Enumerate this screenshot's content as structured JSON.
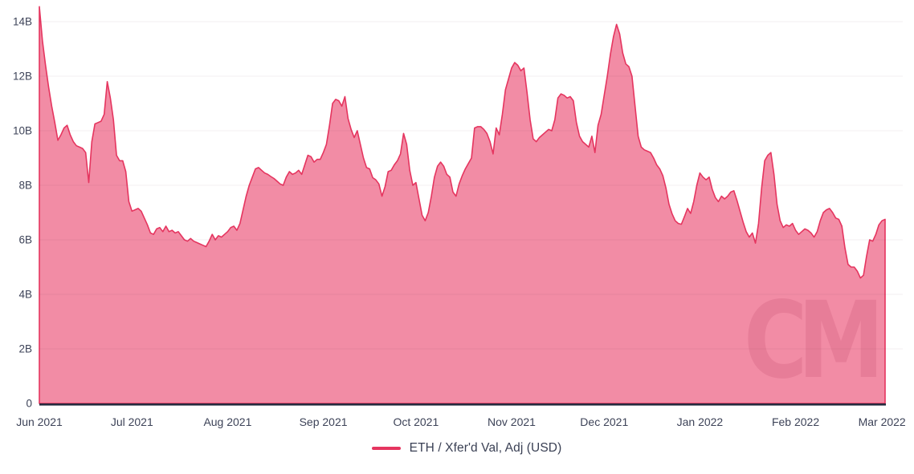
{
  "legend": {
    "label": "ETH / Xfer'd Val, Adj (USD)",
    "swatch_color": "#e5355f"
  },
  "watermark_text": "CM",
  "colors": {
    "background": "#ffffff",
    "line": "#e5355f",
    "fill": "#f28ca5",
    "axis_line": "#262a3e",
    "tick_label": "#3d4358",
    "legend_label": "#3a4054",
    "gridline": "rgba(86,30,58,0.07)",
    "watermark": "rgba(164,31,73,0.13)"
  },
  "chart_data": {
    "type": "area",
    "title": "",
    "xlabel": "",
    "ylabel": "",
    "grid": "horizontal",
    "legend_position": "bottom-center",
    "ylim": [
      0,
      14.8
    ],
    "y_ticks": [
      "0",
      "2B",
      "4B",
      "6B",
      "8B",
      "10B",
      "12B",
      "14B"
    ],
    "y_tick_values": [
      0,
      2,
      4,
      6,
      8,
      10,
      12,
      14
    ],
    "x_ticks": [
      {
        "label": "Jun 2021",
        "day": 0
      },
      {
        "label": "Jul 2021",
        "day": 30
      },
      {
        "label": "Aug 2021",
        "day": 61
      },
      {
        "label": "Sep 2021",
        "day": 92
      },
      {
        "label": "Oct 2021",
        "day": 122
      },
      {
        "label": "Nov 2021",
        "day": 153
      },
      {
        "label": "Dec 2021",
        "day": 183
      },
      {
        "label": "Jan 2022",
        "day": 214
      },
      {
        "label": "Feb 2022",
        "day": 245
      },
      {
        "label": "Mar 2022",
        "day": 273
      }
    ],
    "series": [
      {
        "name": "ETH / Xfer'd Val, Adj (USD)",
        "unit": "billions USD",
        "frequency": "daily",
        "start_date": "2021-06-01",
        "end_date": "2022-03-02",
        "color": "#e5355f",
        "fill_color": "#f28ca5",
        "values": [
          14.55,
          13.3,
          12.4,
          11.6,
          10.9,
          10.3,
          9.65,
          9.85,
          10.1,
          10.2,
          9.85,
          9.6,
          9.45,
          9.4,
          9.35,
          9.2,
          8.1,
          9.6,
          10.25,
          10.3,
          10.35,
          10.6,
          11.8,
          11.2,
          10.4,
          9.1,
          8.9,
          8.9,
          8.5,
          7.4,
          7.05,
          7.1,
          7.15,
          7.05,
          6.8,
          6.55,
          6.25,
          6.2,
          6.4,
          6.45,
          6.3,
          6.5,
          6.3,
          6.35,
          6.25,
          6.3,
          6.15,
          6.0,
          5.95,
          6.05,
          5.95,
          5.9,
          5.85,
          5.8,
          5.75,
          5.95,
          6.2,
          6.0,
          6.15,
          6.1,
          6.2,
          6.3,
          6.45,
          6.5,
          6.35,
          6.6,
          7.1,
          7.6,
          8.0,
          8.3,
          8.6,
          8.65,
          8.55,
          8.45,
          8.4,
          8.32,
          8.25,
          8.15,
          8.05,
          8.0,
          8.3,
          8.5,
          8.4,
          8.45,
          8.55,
          8.4,
          8.75,
          9.1,
          9.05,
          8.85,
          8.95,
          8.95,
          9.2,
          9.5,
          10.2,
          11.0,
          11.15,
          11.1,
          10.9,
          11.25,
          10.45,
          10.05,
          9.75,
          10.0,
          9.5,
          9.0,
          8.65,
          8.6,
          8.28,
          8.2,
          8.05,
          7.6,
          7.95,
          8.5,
          8.55,
          8.75,
          8.9,
          9.15,
          9.9,
          9.5,
          8.55,
          8.0,
          8.1,
          7.5,
          6.9,
          6.7,
          7.0,
          7.6,
          8.3,
          8.7,
          8.85,
          8.7,
          8.4,
          8.3,
          7.75,
          7.6,
          8.05,
          8.35,
          8.6,
          8.8,
          9.0,
          10.1,
          10.15,
          10.15,
          10.05,
          9.9,
          9.6,
          9.15,
          10.1,
          9.85,
          10.6,
          11.5,
          11.9,
          12.3,
          12.5,
          12.4,
          12.2,
          12.3,
          11.4,
          10.4,
          9.7,
          9.6,
          9.75,
          9.85,
          9.95,
          10.05,
          10.0,
          10.4,
          11.2,
          11.35,
          11.3,
          11.2,
          11.25,
          11.1,
          10.3,
          9.8,
          9.6,
          9.5,
          9.4,
          9.8,
          9.2,
          10.2,
          10.6,
          11.3,
          12.0,
          12.8,
          13.45,
          13.9,
          13.55,
          12.85,
          12.45,
          12.35,
          12.0,
          10.9,
          9.8,
          9.4,
          9.3,
          9.25,
          9.2,
          9.0,
          8.75,
          8.6,
          8.35,
          7.9,
          7.3,
          6.95,
          6.7,
          6.6,
          6.57,
          6.85,
          7.15,
          6.97,
          7.4,
          8.0,
          8.45,
          8.3,
          8.2,
          8.3,
          7.85,
          7.55,
          7.4,
          7.6,
          7.5,
          7.6,
          7.75,
          7.8,
          7.45,
          7.05,
          6.65,
          6.3,
          6.1,
          6.25,
          5.88,
          6.6,
          7.9,
          8.9,
          9.1,
          9.2,
          8.4,
          7.3,
          6.7,
          6.45,
          6.55,
          6.5,
          6.6,
          6.35,
          6.2,
          6.3,
          6.4,
          6.35,
          6.25,
          6.1,
          6.3,
          6.7,
          7.0,
          7.1,
          7.15,
          7.0,
          6.8,
          6.75,
          6.5,
          5.7,
          5.1,
          5.0,
          5.0,
          4.85,
          4.6,
          4.7,
          5.4,
          6.0,
          5.95,
          6.2,
          6.55,
          6.7,
          6.75
        ]
      }
    ]
  }
}
